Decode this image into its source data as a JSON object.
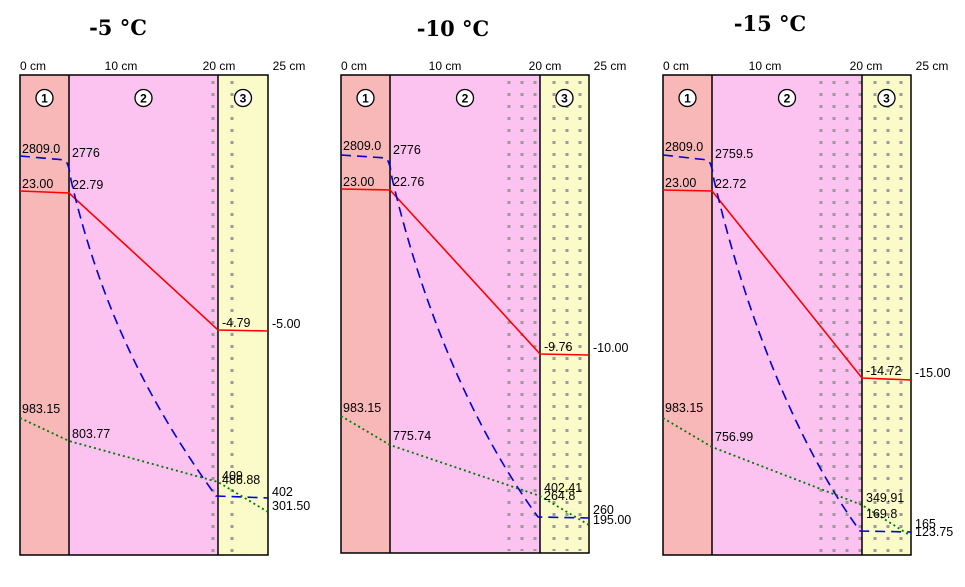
{
  "colors": {
    "layer1": "#f9b8b8",
    "layer2": "#fcc3f0",
    "layer3": "#fbfbca",
    "temperature_line": "#ff0000",
    "pressure_sat_line": "#0000dd",
    "pressure_line": "#007700",
    "dots": "#9a9a9a"
  },
  "axis_ticks": [
    "0 cm",
    "10 cm",
    "20 cm",
    "25 cm"
  ],
  "layer_numbers": [
    "1",
    "2",
    "3"
  ],
  "chart_data": [
    {
      "type": "diagram",
      "title": "-5 °C",
      "temperature": {
        "inner": "23.00",
        "interface_12": "22.79",
        "interface_23": "-4.79",
        "outer": "-5.00"
      },
      "saturation_pressure": {
        "inner": "2809.0",
        "interface_12": "2776",
        "interface_23": "409",
        "outer": "402"
      },
      "vapour_pressure": {
        "inner": "983.15",
        "interface_12": "803.77",
        "interface_23": "486.88",
        "outer": "301.50"
      }
    },
    {
      "type": "diagram",
      "title": "-10 °C",
      "temperature": {
        "inner": "23.00",
        "interface_12": "22.76",
        "interface_23": "-9.76",
        "outer": "-10.00"
      },
      "saturation_pressure": {
        "inner": "2809.0",
        "interface_12": "2776",
        "interface_23": "264.8",
        "outer": "260"
      },
      "vapour_pressure": {
        "inner": "983.15",
        "interface_12": "775.74",
        "interface_23": "402.41",
        "outer": "195.00"
      }
    },
    {
      "type": "diagram",
      "title": "-15 °C",
      "temperature": {
        "inner": "23.00",
        "interface_12": "22.72",
        "interface_23": "-14.72",
        "outer": "-15.00"
      },
      "saturation_pressure": {
        "inner": "2809.0",
        "interface_12": "2759.5",
        "interface_23": "169.8",
        "outer": "165"
      },
      "vapour_pressure": {
        "inner": "983.15",
        "interface_12": "756.99",
        "interface_23": "349.91",
        "outer": "123.75"
      }
    }
  ]
}
